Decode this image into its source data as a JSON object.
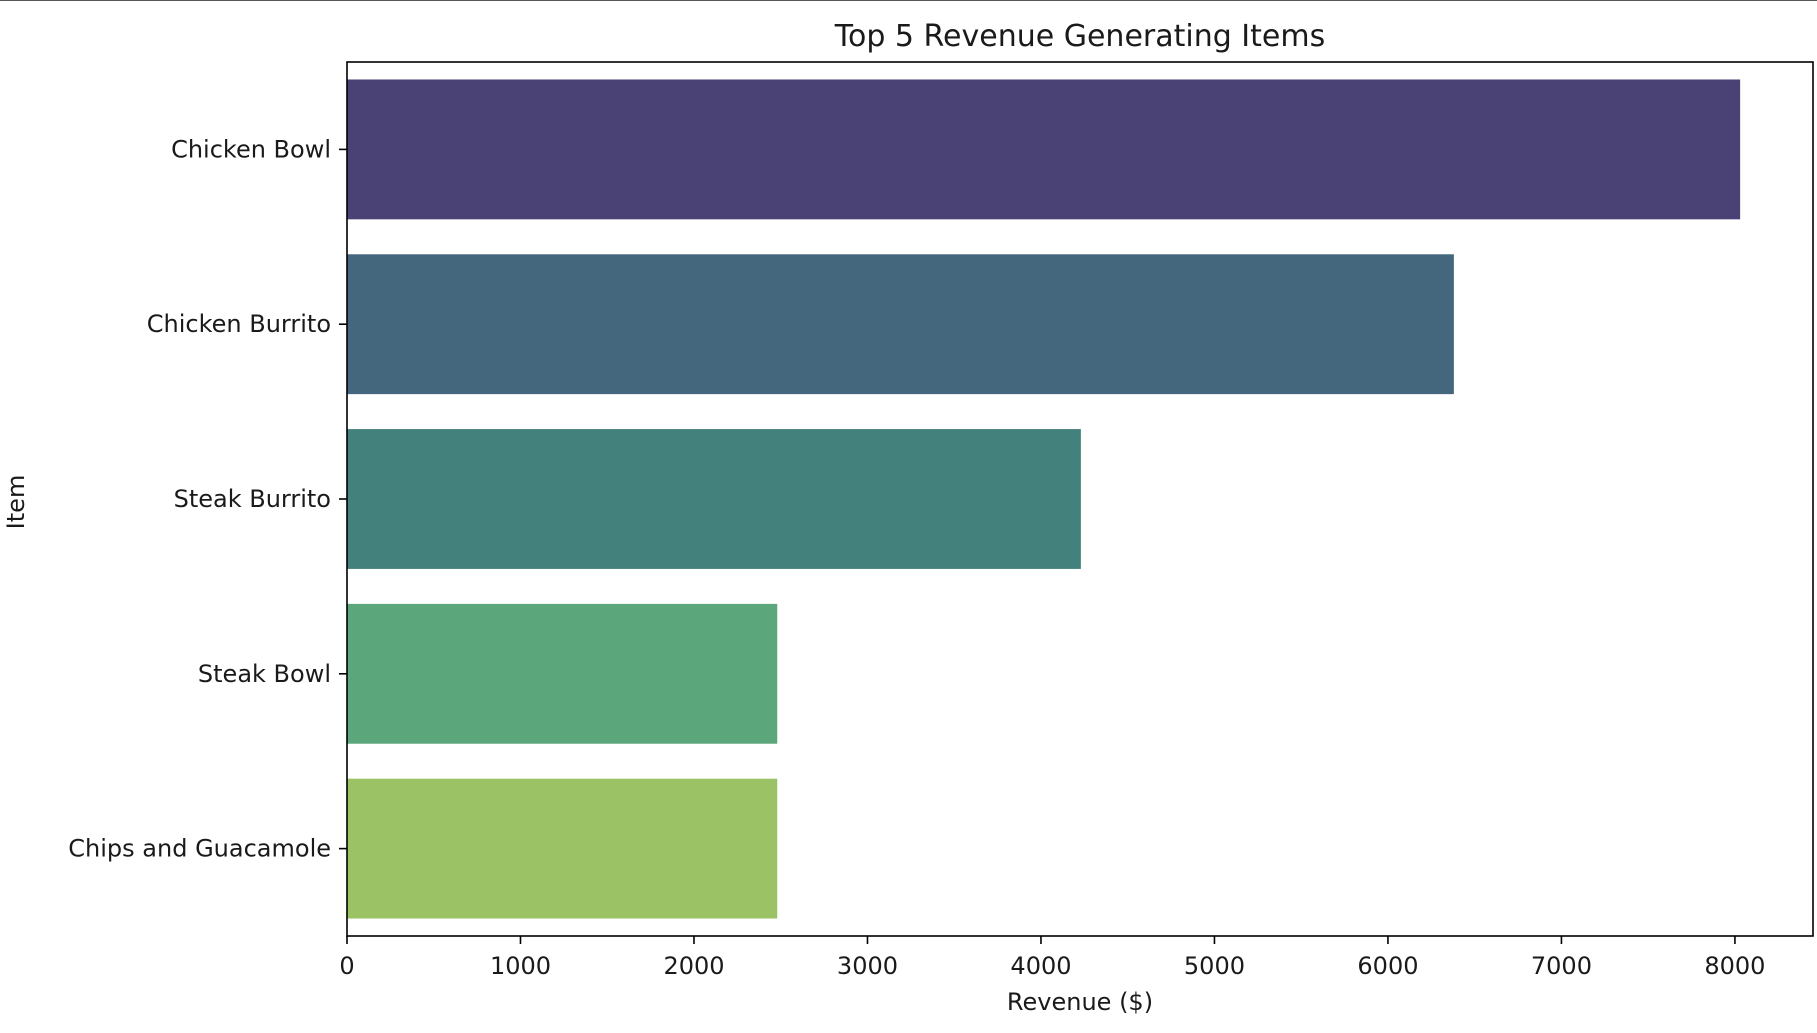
{
  "chart_data": {
    "type": "bar",
    "orientation": "horizontal",
    "title": "Top 5 Revenue Generating Items",
    "xlabel": "Revenue ($)",
    "ylabel": "Item",
    "categories": [
      "Chicken Bowl",
      "Chicken Burrito",
      "Steak Burrito",
      "Steak Bowl",
      "Chips and Guacamole"
    ],
    "values": [
      8030,
      6380,
      4230,
      2480,
      2480
    ],
    "colors": [
      "#4a4175",
      "#44677e",
      "#43817d",
      "#5ca67c",
      "#9cc266"
    ],
    "xlim": [
      0,
      8450
    ],
    "xticks": [
      0,
      1000,
      2000,
      3000,
      4000,
      5000,
      6000,
      7000,
      8000
    ],
    "grid": false,
    "legend": "none"
  }
}
